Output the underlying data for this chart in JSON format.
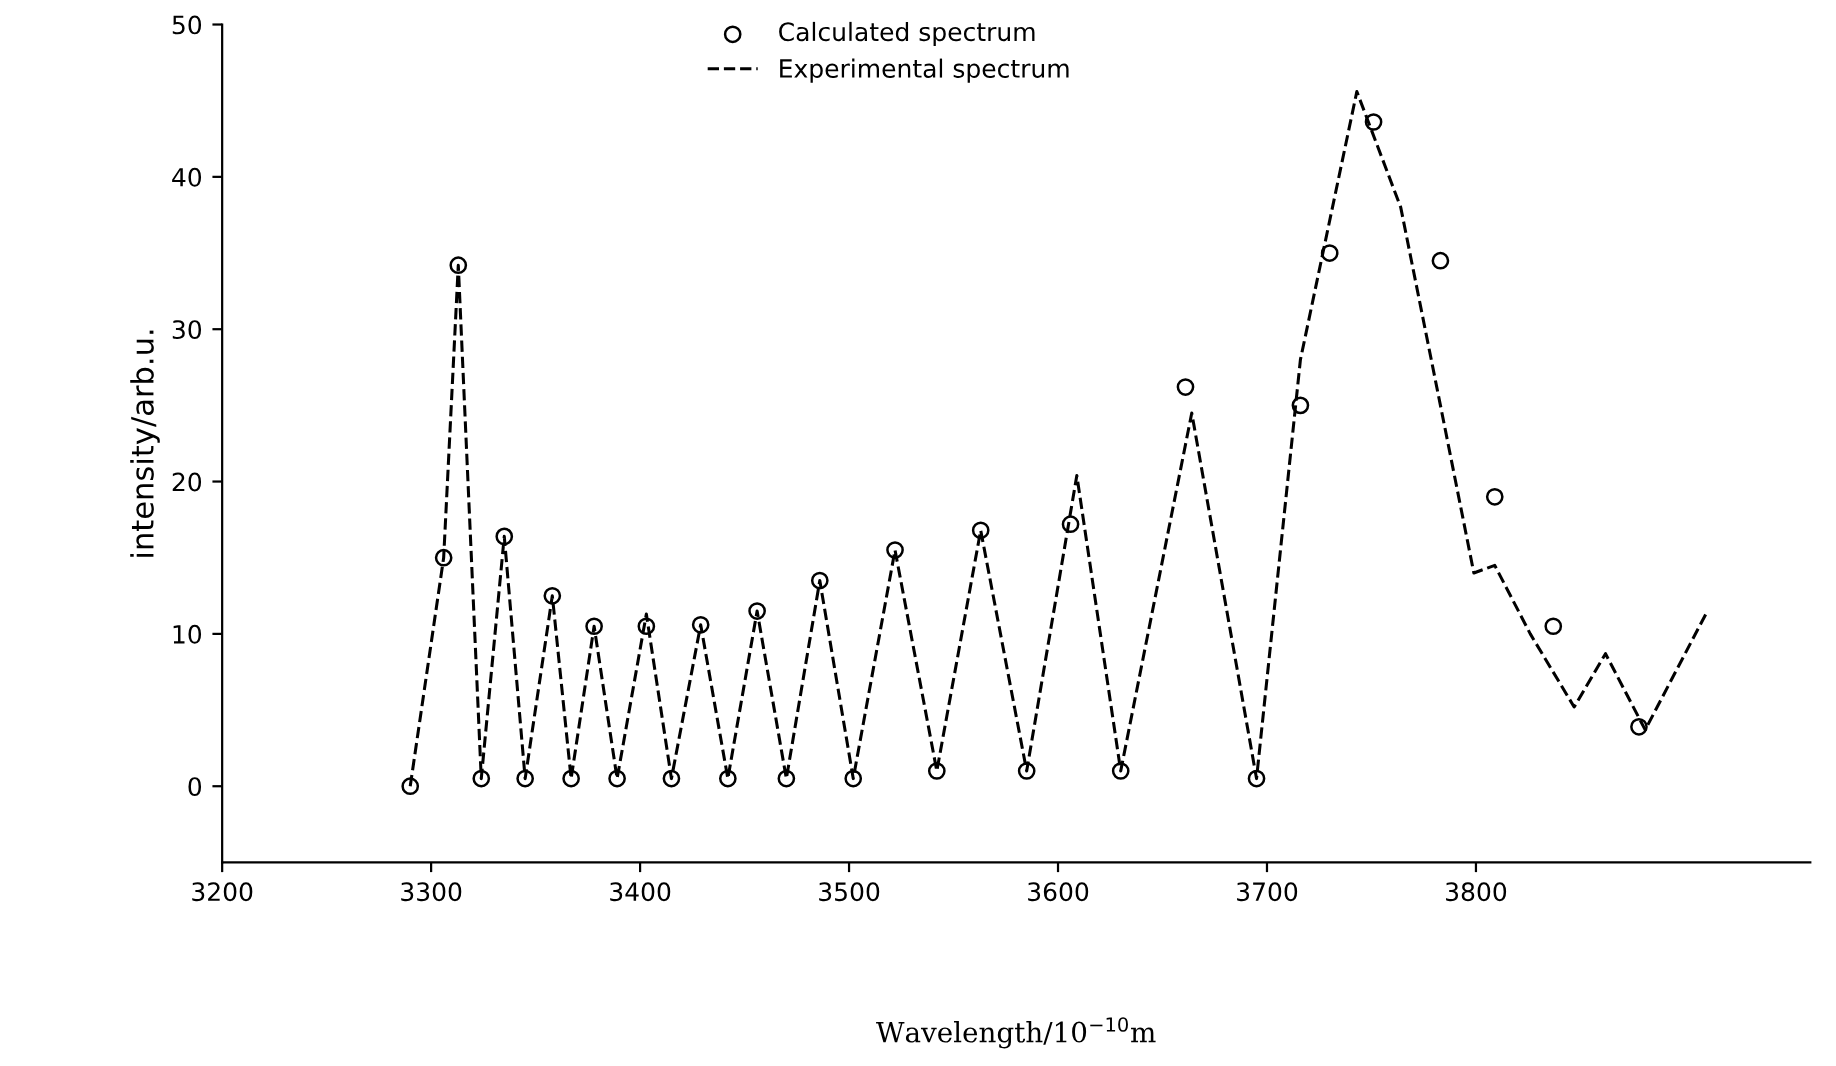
{
  "chart_data": {
    "type": "line",
    "xlabel": "Wavelength/10$^{−10}$m",
    "ylabel": "intensity/arb.u.",
    "xlim": [
      3200,
      3960
    ],
    "xticks": [
      3200,
      3300,
      3400,
      3500,
      3600,
      3700,
      3800
    ],
    "ylim": [
      -5,
      50
    ],
    "yticks": [
      0,
      10,
      20,
      30,
      40,
      50
    ],
    "grid": false,
    "legend": "top",
    "series": [
      {
        "name": "Calculated spectrum",
        "type": "scatter",
        "marker": "circle",
        "color": "#000000",
        "x": [
          3290,
          3306,
          3313,
          3324,
          3335,
          3345,
          3358,
          3367,
          3378,
          3389,
          3403,
          3415,
          3429,
          3442,
          3456,
          3470,
          3486,
          3502,
          3522,
          3542,
          3563,
          3585,
          3606,
          3630,
          3661,
          3695,
          3716,
          3730,
          3751,
          3783,
          3809,
          3837,
          3878
        ],
        "values": [
          0,
          15,
          34.2,
          0.5,
          16.4,
          0.5,
          12.5,
          0.5,
          10.5,
          0.5,
          10.5,
          0.5,
          10.6,
          0.5,
          11.5,
          0.5,
          13.5,
          0.5,
          15.5,
          1,
          16.8,
          1,
          17.2,
          1,
          26.2,
          0.5,
          25,
          35,
          43.6,
          34.5,
          19,
          10.5,
          3.9
        ]
      },
      {
        "name": "Experimental spectrum",
        "line_style": "dashed",
        "color": "#000000",
        "x": [
          3290,
          3306,
          3313,
          3324,
          3335,
          3345,
          3358,
          3367,
          3378,
          3389,
          3403,
          3415,
          3429,
          3442,
          3456,
          3470,
          3486,
          3502,
          3522,
          3542,
          3563,
          3585,
          3609,
          3630,
          3664,
          3695,
          3716,
          3743,
          3764,
          3783,
          3799,
          3809,
          3826,
          3847,
          3862,
          3881,
          3910
        ],
        "values": [
          0,
          15,
          34.2,
          0.5,
          16.4,
          0.5,
          12.5,
          0.5,
          10.5,
          0.5,
          11.3,
          0.5,
          10.6,
          0.5,
          11.5,
          0.5,
          13.5,
          0.5,
          15.5,
          1,
          16.8,
          1,
          20.4,
          1,
          24.5,
          0.5,
          28,
          45.6,
          38,
          25,
          14,
          14.5,
          10,
          5.2,
          8.7,
          3.7,
          11.3
        ]
      }
    ]
  }
}
